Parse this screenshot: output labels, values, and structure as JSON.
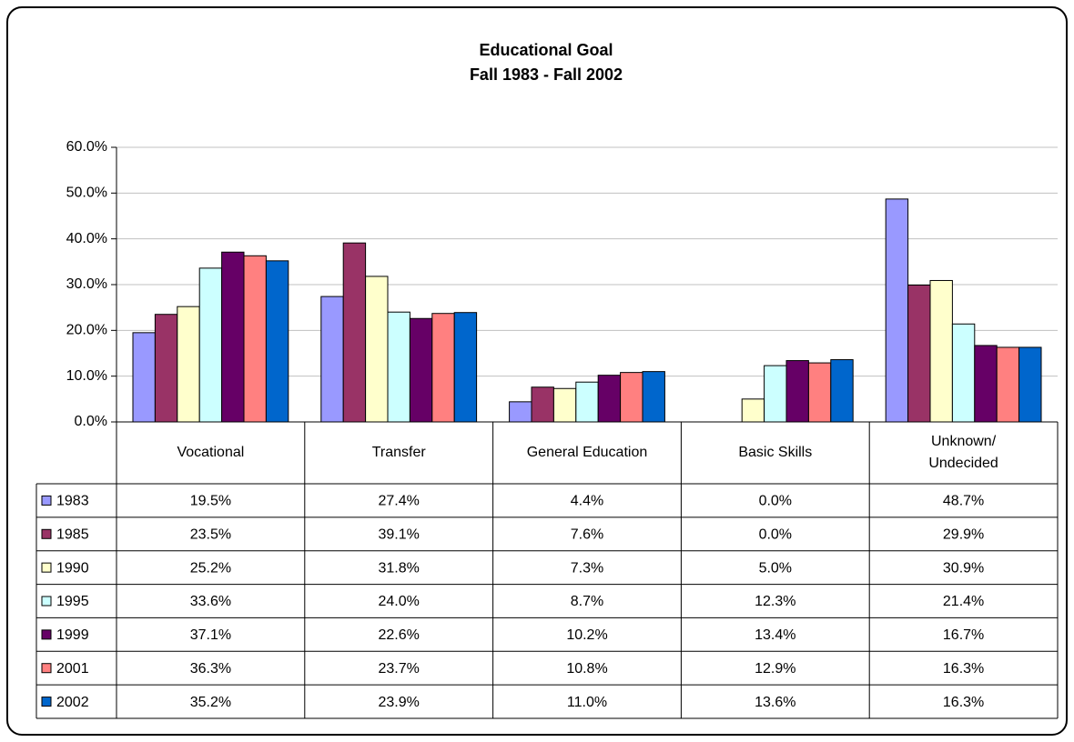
{
  "chart_data": {
    "type": "bar",
    "title": "Educational Goal",
    "subtitle": "Fall 1983 - Fall 2002",
    "categories": [
      "Vocational",
      "Transfer",
      "General Education",
      "Basic Skills",
      "Unknown/\nUndecided"
    ],
    "ylim": [
      0,
      60
    ],
    "yticks": [
      {
        "value": 0,
        "label": "0.0%"
      },
      {
        "value": 10,
        "label": "10.0%"
      },
      {
        "value": 20,
        "label": "20.0%"
      },
      {
        "value": 30,
        "label": "30.0%"
      },
      {
        "value": 40,
        "label": "40.0%"
      },
      {
        "value": 50,
        "label": "50.0%"
      },
      {
        "value": 60,
        "label": "60.0%"
      }
    ],
    "grid": true,
    "series": [
      {
        "name": "1983",
        "color": "#9999ff",
        "values": [
          19.5,
          27.4,
          4.4,
          0.0,
          48.7
        ],
        "value_labels": [
          "19.5%",
          "27.4%",
          "4.4%",
          "0.0%",
          "48.7%"
        ]
      },
      {
        "name": "1985",
        "color": "#993366",
        "values": [
          23.5,
          39.1,
          7.6,
          0.0,
          29.9
        ],
        "value_labels": [
          "23.5%",
          "39.1%",
          "7.6%",
          "0.0%",
          "29.9%"
        ]
      },
      {
        "name": "1990",
        "color": "#ffffcc",
        "values": [
          25.2,
          31.8,
          7.3,
          5.0,
          30.9
        ],
        "value_labels": [
          "25.2%",
          "31.8%",
          "7.3%",
          "5.0%",
          "30.9%"
        ]
      },
      {
        "name": "1995",
        "color": "#ccffff",
        "values": [
          33.6,
          24.0,
          8.7,
          12.3,
          21.4
        ],
        "value_labels": [
          "33.6%",
          "24.0%",
          "8.7%",
          "12.3%",
          "21.4%"
        ]
      },
      {
        "name": "1999",
        "color": "#660066",
        "values": [
          37.1,
          22.6,
          10.2,
          13.4,
          16.7
        ],
        "value_labels": [
          "37.1%",
          "22.6%",
          "10.2%",
          "13.4%",
          "16.7%"
        ]
      },
      {
        "name": "2001",
        "color": "#ff8080",
        "values": [
          36.3,
          23.7,
          10.8,
          12.9,
          16.3
        ],
        "value_labels": [
          "36.3%",
          "23.7%",
          "10.8%",
          "12.9%",
          "16.3%"
        ]
      },
      {
        "name": "2002",
        "color": "#0066cc",
        "values": [
          35.2,
          23.9,
          11.0,
          13.6,
          16.3
        ],
        "value_labels": [
          "35.2%",
          "23.9%",
          "11.0%",
          "13.6%",
          "16.3%"
        ]
      }
    ]
  }
}
